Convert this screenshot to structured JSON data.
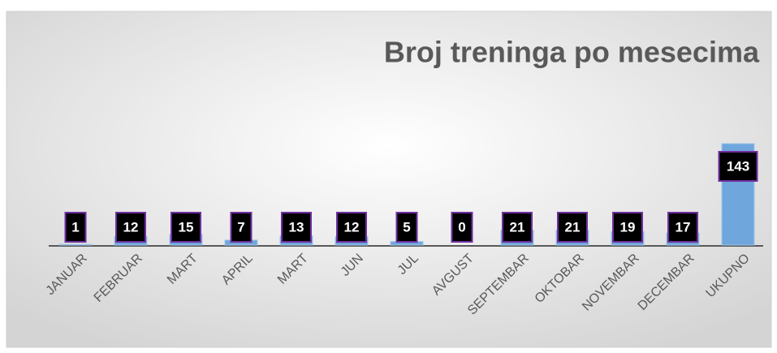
{
  "chart_data": {
    "type": "bar",
    "title": "Broj treninga po mesecima",
    "categories": [
      "JANUAR",
      "FEBRUAR",
      "MART",
      "APRIL",
      "MART",
      "JUN",
      "JUL",
      "AVGUST",
      "SEPTEMBAR",
      "OKTOBAR",
      "NOVEMBAR",
      "DECEMBAR",
      "UKUPNO"
    ],
    "values": [
      1,
      12,
      15,
      7,
      13,
      12,
      5,
      0,
      21,
      21,
      19,
      17,
      143
    ],
    "color": "#6fa6dc"
  }
}
